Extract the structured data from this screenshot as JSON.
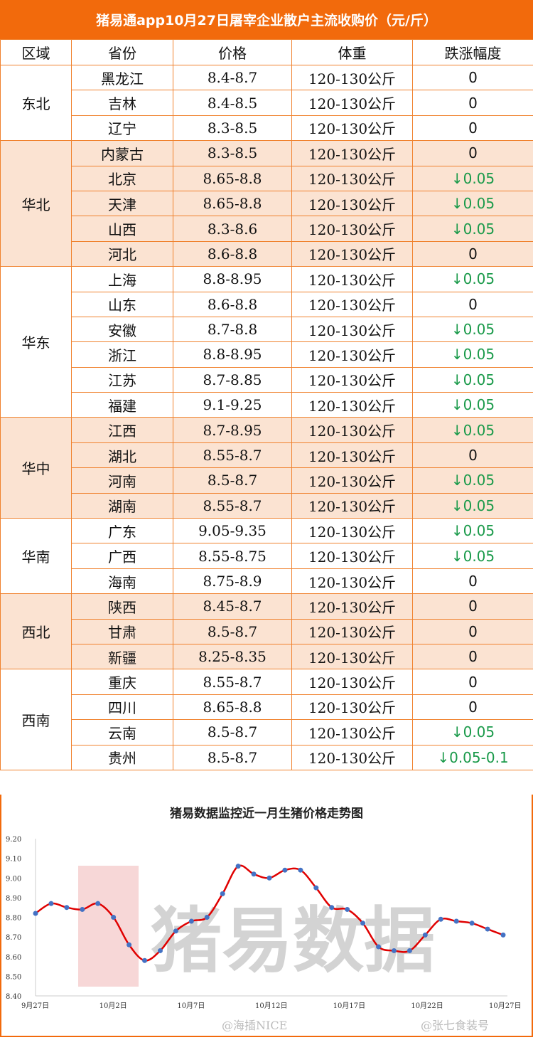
{
  "title": "猪易通app10月27日屠宰企业散户主流收购价（元/斤）",
  "columns": [
    "区域",
    "省份",
    "价格",
    "体重",
    "跌涨幅度"
  ],
  "colors": {
    "header": "#f26a0c",
    "shade": "#fbe3d2",
    "down": "#1a9a4a",
    "line": "#e00000",
    "points": "#4472c4"
  },
  "regions": [
    {
      "name": "东北",
      "shaded": false,
      "rows": [
        [
          "黑龙江",
          "8.4-8.7",
          "120-130公斤",
          "0"
        ],
        [
          "吉林",
          "8.4-8.5",
          "120-130公斤",
          "0"
        ],
        [
          "辽宁",
          "8.3-8.5",
          "120-130公斤",
          "0"
        ]
      ]
    },
    {
      "name": "华北",
      "shaded": true,
      "rows": [
        [
          "内蒙古",
          "8.3-8.5",
          "120-130公斤",
          "0"
        ],
        [
          "北京",
          "8.65-8.8",
          "120-130公斤",
          "↓0.05"
        ],
        [
          "天津",
          "8.65-8.8",
          "120-130公斤",
          "↓0.05"
        ],
        [
          "山西",
          "8.3-8.6",
          "120-130公斤",
          "↓0.05"
        ],
        [
          "河北",
          "8.6-8.8",
          "120-130公斤",
          "0"
        ]
      ]
    },
    {
      "name": "华东",
      "shaded": false,
      "rows": [
        [
          "上海",
          "8.8-8.95",
          "120-130公斤",
          "↓0.05"
        ],
        [
          "山东",
          "8.6-8.8",
          "120-130公斤",
          "0"
        ],
        [
          "安徽",
          "8.7-8.8",
          "120-130公斤",
          "↓0.05"
        ],
        [
          "浙江",
          "8.8-8.95",
          "120-130公斤",
          "↓0.05"
        ],
        [
          "江苏",
          "8.7-8.85",
          "120-130公斤",
          "↓0.05"
        ],
        [
          "福建",
          "9.1-9.25",
          "120-130公斤",
          "↓0.05"
        ]
      ]
    },
    {
      "name": "华中",
      "shaded": true,
      "rows": [
        [
          "江西",
          "8.7-8.95",
          "120-130公斤",
          "↓0.05"
        ],
        [
          "湖北",
          "8.55-8.7",
          "120-130公斤",
          "0"
        ],
        [
          "河南",
          "8.5-8.7",
          "120-130公斤",
          "↓0.05"
        ],
        [
          "湖南",
          "8.55-8.7",
          "120-130公斤",
          "↓0.05"
        ]
      ]
    },
    {
      "name": "华南",
      "shaded": false,
      "rows": [
        [
          "广东",
          "9.05-9.35",
          "120-130公斤",
          "↓0.05"
        ],
        [
          "广西",
          "8.55-8.75",
          "120-130公斤",
          "↓0.05"
        ],
        [
          "海南",
          "8.75-8.9",
          "120-130公斤",
          "0"
        ]
      ]
    },
    {
      "name": "西北",
      "shaded": true,
      "rows": [
        [
          "陕西",
          "8.45-8.7",
          "120-130公斤",
          "0"
        ],
        [
          "甘肃",
          "8.5-8.7",
          "120-130公斤",
          "0"
        ],
        [
          "新疆",
          "8.25-8.35",
          "120-130公斤",
          "0"
        ]
      ]
    },
    {
      "name": "西南",
      "shaded": false,
      "rows": [
        [
          "重庆",
          "8.55-8.7",
          "120-130公斤",
          "0"
        ],
        [
          "四川",
          "8.65-8.8",
          "120-130公斤",
          "0"
        ],
        [
          "云南",
          "8.5-8.7",
          "120-130公斤",
          "↓0.05"
        ],
        [
          "贵州",
          "8.5-8.7",
          "120-130公斤",
          "↓0.05-0.1"
        ]
      ]
    }
  ],
  "chart_data": {
    "type": "line",
    "title": "猪易数据监控近一月生猪价格走势图",
    "x": [
      "9/27",
      "9/28",
      "9/29",
      "9/30",
      "10/1",
      "10/2",
      "10/3",
      "10/4",
      "10/5",
      "10/6",
      "10/7",
      "10/8",
      "10/9",
      "10/10",
      "10/11",
      "10/12",
      "10/13",
      "10/14",
      "10/15",
      "10/16",
      "10/17",
      "10/18",
      "10/19",
      "10/20",
      "10/21",
      "10/22",
      "10/23",
      "10/24",
      "10/25",
      "10/26",
      "10/27"
    ],
    "values": [
      8.82,
      8.87,
      8.85,
      8.84,
      8.87,
      8.8,
      8.66,
      8.58,
      8.63,
      8.73,
      8.78,
      8.8,
      8.92,
      9.06,
      9.02,
      9.0,
      9.04,
      9.04,
      8.95,
      8.85,
      8.84,
      8.77,
      8.65,
      8.63,
      8.63,
      8.71,
      8.79,
      8.78,
      8.77,
      8.74,
      8.71
    ],
    "xtick_labels": [
      "9月27日",
      "10月2日",
      "10月7日",
      "10月12日",
      "10月17日",
      "10月22日",
      "10月27日"
    ],
    "ytick_labels": [
      "8.40",
      "8.50",
      "8.60",
      "8.70",
      "8.80",
      "8.90",
      "9.00",
      "9.10",
      "9.20"
    ],
    "ylim": [
      8.4,
      9.2
    ],
    "grid": false,
    "legend": "none"
  },
  "watermarks": [
    "猪易数据",
    "@海插NICE",
    "@张七食装号"
  ]
}
